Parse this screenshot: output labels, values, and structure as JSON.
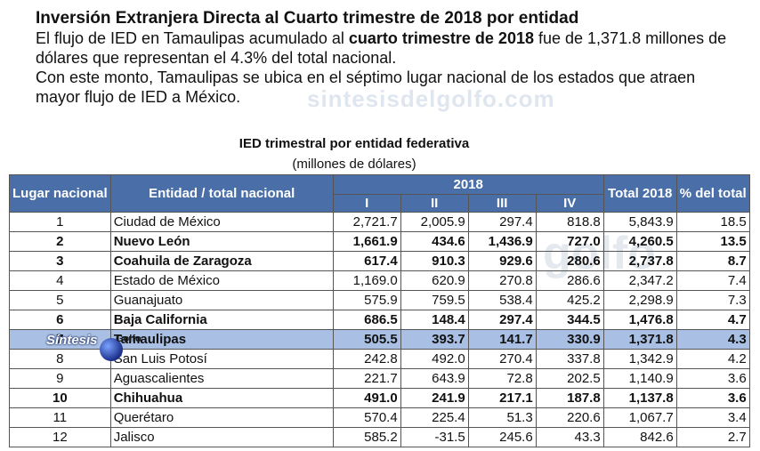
{
  "intro": {
    "heading": "Inversión Extranjera Directa al Cuarto trimestre de 2018 por entidad",
    "p1_before": "El flujo de IED en Tamaulipas acumulado al ",
    "p1_bold": "cuarto trimestre de 2018",
    "p1_after": " fue de 1,371.8 millones de dólares que representan el 4.3% del total nacional.",
    "p2": "Con este monto, Tamaulipas se ubica en el séptimo lugar nacional de los estados que atraen mayor flujo de IED a México."
  },
  "watermark": {
    "text1": "sintesisdelgolfo.com",
    "text2": "golfo"
  },
  "logo": {
    "text": "Síntesis",
    "sub": "Golfo"
  },
  "table": {
    "title": "IED trimestral por entidad federativa",
    "subtitle": "(millones de dólares)",
    "headers": {
      "lugar": "Lugar nacional",
      "entidad": "Entidad / total nacional",
      "year": "2018",
      "q1": "I",
      "q2": "II",
      "q3": "III",
      "q4": "IV",
      "total": "Total 2018",
      "pct": "% del total"
    },
    "rows": [
      {
        "rank": "1",
        "name": "Ciudad de México",
        "q1": "2,721.7",
        "q2": "2,005.9",
        "q3": "297.4",
        "q4": "818.8",
        "total": "5,843.9",
        "pct": "18.5"
      },
      {
        "rank": "2",
        "name": "Nuevo León",
        "q1": "1,661.9",
        "q2": "434.6",
        "q3": "1,436.9",
        "q4": "727.0",
        "total": "4,260.5",
        "pct": "13.5"
      },
      {
        "rank": "3",
        "name": "Coahuila de Zaragoza",
        "q1": "617.4",
        "q2": "910.3",
        "q3": "929.6",
        "q4": "280.6",
        "total": "2,737.8",
        "pct": "8.7"
      },
      {
        "rank": "4",
        "name": "Estado de México",
        "q1": "1,169.0",
        "q2": "620.9",
        "q3": "270.8",
        "q4": "286.6",
        "total": "2,347.2",
        "pct": "7.4"
      },
      {
        "rank": "5",
        "name": "Guanajuato",
        "q1": "575.9",
        "q2": "759.5",
        "q3": "538.4",
        "q4": "425.2",
        "total": "2,298.9",
        "pct": "7.3"
      },
      {
        "rank": "6",
        "name": "Baja California",
        "q1": "686.5",
        "q2": "148.4",
        "q3": "297.4",
        "q4": "344.5",
        "total": "1,476.8",
        "pct": "4.7"
      },
      {
        "rank": "7",
        "name": "Tamaulipas",
        "q1": "505.5",
        "q2": "393.7",
        "q3": "141.7",
        "q4": "330.9",
        "total": "1,371.8",
        "pct": "4.3"
      },
      {
        "rank": "8",
        "name": "San Luis Potosí",
        "q1": "242.8",
        "q2": "492.0",
        "q3": "270.4",
        "q4": "337.8",
        "total": "1,342.9",
        "pct": "4.2"
      },
      {
        "rank": "9",
        "name": "Aguascalientes",
        "q1": "221.7",
        "q2": "643.9",
        "q3": "72.8",
        "q4": "202.5",
        "total": "1,140.9",
        "pct": "3.6"
      },
      {
        "rank": "10",
        "name": "Chihuahua",
        "q1": "491.0",
        "q2": "241.9",
        "q3": "217.1",
        "q4": "187.8",
        "total": "1,137.8",
        "pct": "3.6"
      },
      {
        "rank": "11",
        "name": "Querétaro",
        "q1": "570.4",
        "q2": "225.4",
        "q3": "51.3",
        "q4": "220.6",
        "total": "1,067.7",
        "pct": "3.4"
      },
      {
        "rank": "12",
        "name": "Jalisco",
        "q1": "585.2",
        "q2": "-31.5",
        "q3": "245.6",
        "q4": "43.3",
        "total": "842.6",
        "pct": "2.7"
      }
    ]
  }
}
